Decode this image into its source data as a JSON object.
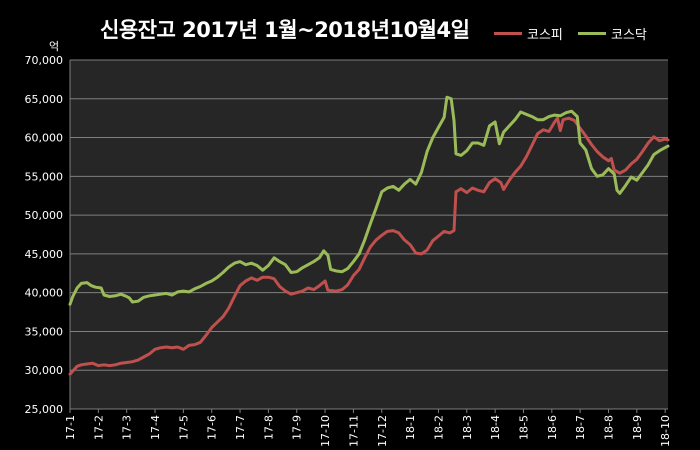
{
  "chart_data": {
    "type": "line",
    "title": "신용잔고 2017년 1월~2018년10월4일",
    "unit_label": "억",
    "ylim": [
      25000,
      70000
    ],
    "yticks": [
      "25,000",
      "30,000",
      "35,000",
      "40,000",
      "45,000",
      "50,000",
      "55,000",
      "60,000",
      "65,000",
      "70,000"
    ],
    "ytick_values": [
      25000,
      30000,
      35000,
      40000,
      45000,
      50000,
      55000,
      60000,
      65000,
      70000
    ],
    "xticks": [
      "17-1",
      "17-2",
      "17-3",
      "17-4",
      "17-5",
      "17-6",
      "17-7",
      "17-8",
      "17-9",
      "17-10",
      "17-11",
      "17-12",
      "18-1",
      "18-2",
      "18-3",
      "18-4",
      "18-5",
      "18-6",
      "18-7",
      "18-8",
      "18-9",
      "18-10"
    ],
    "x_range": [
      0,
      21.1
    ],
    "grid": "horizontal",
    "legend_position": "top-right",
    "series": [
      {
        "name": "코스피",
        "color": "#c0504d",
        "points": [
          [
            0.0,
            29500
          ],
          [
            0.1,
            29900
          ],
          [
            0.25,
            30500
          ],
          [
            0.4,
            30700
          ],
          [
            0.6,
            30800
          ],
          [
            0.8,
            30900
          ],
          [
            1.0,
            30600
          ],
          [
            1.2,
            30700
          ],
          [
            1.4,
            30600
          ],
          [
            1.6,
            30700
          ],
          [
            1.8,
            30900
          ],
          [
            2.0,
            31000
          ],
          [
            2.2,
            31100
          ],
          [
            2.4,
            31300
          ],
          [
            2.6,
            31700
          ],
          [
            2.8,
            32100
          ],
          [
            3.0,
            32700
          ],
          [
            3.2,
            32900
          ],
          [
            3.4,
            33000
          ],
          [
            3.6,
            32900
          ],
          [
            3.8,
            33000
          ],
          [
            4.0,
            32700
          ],
          [
            4.2,
            33200
          ],
          [
            4.4,
            33300
          ],
          [
            4.6,
            33600
          ],
          [
            4.8,
            34500
          ],
          [
            5.0,
            35500
          ],
          [
            5.2,
            36200
          ],
          [
            5.4,
            36900
          ],
          [
            5.6,
            38000
          ],
          [
            5.8,
            39500
          ],
          [
            6.0,
            40900
          ],
          [
            6.2,
            41500
          ],
          [
            6.4,
            41900
          ],
          [
            6.6,
            41600
          ],
          [
            6.8,
            42000
          ],
          [
            7.0,
            42000
          ],
          [
            7.2,
            41800
          ],
          [
            7.4,
            40800
          ],
          [
            7.6,
            40200
          ],
          [
            7.8,
            39800
          ],
          [
            8.0,
            40000
          ],
          [
            8.2,
            40200
          ],
          [
            8.4,
            40600
          ],
          [
            8.6,
            40400
          ],
          [
            8.8,
            40900
          ],
          [
            9.0,
            41500
          ],
          [
            9.1,
            40300
          ],
          [
            9.4,
            40200
          ],
          [
            9.6,
            40400
          ],
          [
            9.8,
            41000
          ],
          [
            10.0,
            42200
          ],
          [
            10.2,
            43000
          ],
          [
            10.4,
            44500
          ],
          [
            10.6,
            45900
          ],
          [
            10.8,
            46800
          ],
          [
            11.0,
            47400
          ],
          [
            11.2,
            47900
          ],
          [
            11.4,
            48000
          ],
          [
            11.6,
            47700
          ],
          [
            11.8,
            46800
          ],
          [
            12.0,
            46200
          ],
          [
            12.2,
            45100
          ],
          [
            12.4,
            45000
          ],
          [
            12.6,
            45500
          ],
          [
            12.8,
            46700
          ],
          [
            13.0,
            47300
          ],
          [
            13.2,
            47900
          ],
          [
            13.4,
            47700
          ],
          [
            13.55,
            48000
          ],
          [
            13.62,
            53000
          ],
          [
            13.8,
            53400
          ],
          [
            14.0,
            52900
          ],
          [
            14.2,
            53500
          ],
          [
            14.4,
            53200
          ],
          [
            14.6,
            53000
          ],
          [
            14.8,
            54200
          ],
          [
            15.0,
            54700
          ],
          [
            15.2,
            54200
          ],
          [
            15.3,
            53300
          ],
          [
            15.5,
            54500
          ],
          [
            15.7,
            55500
          ],
          [
            15.9,
            56300
          ],
          [
            16.1,
            57500
          ],
          [
            16.3,
            59000
          ],
          [
            16.5,
            60500
          ],
          [
            16.7,
            61000
          ],
          [
            16.9,
            60800
          ],
          [
            17.1,
            62000
          ],
          [
            17.2,
            62500
          ],
          [
            17.3,
            60900
          ],
          [
            17.4,
            62300
          ],
          [
            17.6,
            62500
          ],
          [
            17.8,
            62200
          ],
          [
            18.0,
            61200
          ],
          [
            18.2,
            60200
          ],
          [
            18.4,
            59100
          ],
          [
            18.6,
            58200
          ],
          [
            18.8,
            57500
          ],
          [
            19.0,
            57000
          ],
          [
            19.1,
            57300
          ],
          [
            19.2,
            55800
          ],
          [
            19.4,
            55400
          ],
          [
            19.6,
            55800
          ],
          [
            19.8,
            56600
          ],
          [
            20.0,
            57200
          ],
          [
            20.2,
            58200
          ],
          [
            20.4,
            59300
          ],
          [
            20.6,
            60100
          ],
          [
            20.8,
            59600
          ],
          [
            21.0,
            59800
          ],
          [
            21.1,
            59700
          ]
        ]
      },
      {
        "name": "코스닥",
        "color": "#9bbb59",
        "points": [
          [
            0.0,
            38500
          ],
          [
            0.1,
            39500
          ],
          [
            0.25,
            40600
          ],
          [
            0.4,
            41200
          ],
          [
            0.6,
            41300
          ],
          [
            0.75,
            40900
          ],
          [
            0.9,
            40700
          ],
          [
            1.1,
            40600
          ],
          [
            1.2,
            39700
          ],
          [
            1.4,
            39500
          ],
          [
            1.6,
            39600
          ],
          [
            1.8,
            39800
          ],
          [
            2.0,
            39500
          ],
          [
            2.1,
            39300
          ],
          [
            2.2,
            38800
          ],
          [
            2.4,
            38900
          ],
          [
            2.6,
            39400
          ],
          [
            2.8,
            39600
          ],
          [
            3.0,
            39700
          ],
          [
            3.2,
            39800
          ],
          [
            3.4,
            39900
          ],
          [
            3.6,
            39700
          ],
          [
            3.8,
            40100
          ],
          [
            4.0,
            40200
          ],
          [
            4.2,
            40100
          ],
          [
            4.4,
            40500
          ],
          [
            4.6,
            40800
          ],
          [
            4.8,
            41200
          ],
          [
            5.0,
            41500
          ],
          [
            5.2,
            42000
          ],
          [
            5.4,
            42600
          ],
          [
            5.6,
            43300
          ],
          [
            5.8,
            43800
          ],
          [
            6.0,
            44000
          ],
          [
            6.2,
            43600
          ],
          [
            6.4,
            43800
          ],
          [
            6.6,
            43500
          ],
          [
            6.8,
            42900
          ],
          [
            7.0,
            43500
          ],
          [
            7.2,
            44500
          ],
          [
            7.4,
            44000
          ],
          [
            7.6,
            43600
          ],
          [
            7.8,
            42600
          ],
          [
            8.0,
            42700
          ],
          [
            8.2,
            43200
          ],
          [
            8.4,
            43600
          ],
          [
            8.6,
            44000
          ],
          [
            8.8,
            44500
          ],
          [
            8.95,
            45400
          ],
          [
            9.1,
            44800
          ],
          [
            9.2,
            43000
          ],
          [
            9.4,
            42800
          ],
          [
            9.6,
            42700
          ],
          [
            9.8,
            43100
          ],
          [
            10.0,
            44000
          ],
          [
            10.2,
            45000
          ],
          [
            10.4,
            46800
          ],
          [
            10.6,
            48900
          ],
          [
            10.8,
            50900
          ],
          [
            11.0,
            53000
          ],
          [
            11.2,
            53500
          ],
          [
            11.4,
            53700
          ],
          [
            11.6,
            53200
          ],
          [
            11.8,
            54000
          ],
          [
            12.0,
            54600
          ],
          [
            12.2,
            54000
          ],
          [
            12.4,
            55500
          ],
          [
            12.6,
            58200
          ],
          [
            12.8,
            60000
          ],
          [
            13.0,
            61300
          ],
          [
            13.2,
            62600
          ],
          [
            13.3,
            65200
          ],
          [
            13.45,
            65000
          ],
          [
            13.55,
            62200
          ],
          [
            13.62,
            57900
          ],
          [
            13.8,
            57700
          ],
          [
            14.0,
            58300
          ],
          [
            14.2,
            59300
          ],
          [
            14.4,
            59300
          ],
          [
            14.6,
            59000
          ],
          [
            14.8,
            61500
          ],
          [
            15.0,
            62000
          ],
          [
            15.15,
            59200
          ],
          [
            15.3,
            60700
          ],
          [
            15.5,
            61500
          ],
          [
            15.7,
            62300
          ],
          [
            15.9,
            63300
          ],
          [
            16.1,
            63000
          ],
          [
            16.3,
            62700
          ],
          [
            16.5,
            62300
          ],
          [
            16.7,
            62300
          ],
          [
            16.9,
            62700
          ],
          [
            17.1,
            62900
          ],
          [
            17.3,
            62800
          ],
          [
            17.5,
            63200
          ],
          [
            17.7,
            63400
          ],
          [
            17.9,
            62700
          ],
          [
            18.0,
            59300
          ],
          [
            18.2,
            58400
          ],
          [
            18.4,
            56000
          ],
          [
            18.6,
            55000
          ],
          [
            18.8,
            55200
          ],
          [
            19.0,
            56000
          ],
          [
            19.2,
            55300
          ],
          [
            19.3,
            53200
          ],
          [
            19.4,
            52800
          ],
          [
            19.6,
            53800
          ],
          [
            19.8,
            54900
          ],
          [
            20.0,
            54500
          ],
          [
            20.2,
            55500
          ],
          [
            20.4,
            56500
          ],
          [
            20.6,
            57800
          ],
          [
            20.8,
            58300
          ],
          [
            21.0,
            58700
          ],
          [
            21.1,
            58900
          ]
        ]
      }
    ]
  }
}
